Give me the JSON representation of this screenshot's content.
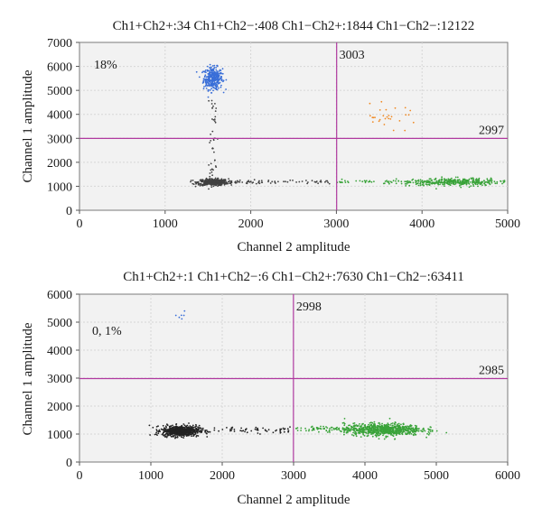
{
  "chart_data": [
    {
      "type": "scatter",
      "title": "Ch1+Ch2+:34 Ch1+Ch2−:408 Ch1−Ch2+:1844 Ch1−Ch2−:12122",
      "xlabel": "Channel 2 amplitude",
      "ylabel": "Channel 1 amplitude",
      "xlim": [
        0,
        5000
      ],
      "ylim": [
        0,
        7000
      ],
      "xticks": [
        0,
        1000,
        2000,
        3000,
        4000,
        5000
      ],
      "yticks": [
        0,
        1000,
        2000,
        3000,
        4000,
        5000,
        6000,
        7000
      ],
      "grid": true,
      "threshold_x": {
        "value": 3003,
        "label": "3003"
      },
      "threshold_y": {
        "value": 2997,
        "label": "2997"
      },
      "annotation": "18%",
      "series": [
        {
          "color": "#3a6fd8",
          "clusters": [
            {
              "cx": 1560,
              "cy": 5500,
              "sx": 55,
              "sy": 230,
              "n": 340
            }
          ]
        },
        {
          "color": "#404040",
          "clusters": [
            {
              "cx": 1560,
              "cy": 1170,
              "sx": 90,
              "sy": 70,
              "n": 420
            },
            {
              "x_range": [
                1600,
                2950
              ],
              "y": 1180,
              "ys": 40,
              "n": 70
            },
            {
              "cx": 1560,
              "y_range": [
                1450,
                4700
              ],
              "xs": 25,
              "n": 40
            }
          ]
        },
        {
          "color": "#3aa33a",
          "clusters": [
            {
              "cx": 4380,
              "cy": 1180,
              "sx": 260,
              "sy": 75,
              "n": 360
            },
            {
              "x_range": [
                3000,
                4100
              ],
              "y": 1190,
              "ys": 40,
              "n": 50
            }
          ]
        },
        {
          "color": "#f08a24",
          "clusters": [
            {
              "cx": 3600,
              "cy": 3900,
              "sx": 180,
              "sy": 230,
              "n": 28
            }
          ]
        }
      ]
    },
    {
      "type": "scatter",
      "title": "Ch1+Ch2+:1 Ch1+Ch2−:6 Ch1−Ch2+:7630 Ch1−Ch2−:63411",
      "xlabel": "Channel 2 amplitude",
      "ylabel": "Channel 1 amplitude",
      "xlim": [
        0,
        6000
      ],
      "ylim": [
        0,
        6000
      ],
      "xticks": [
        0,
        1000,
        2000,
        3000,
        4000,
        5000,
        6000
      ],
      "yticks": [
        0,
        1000,
        2000,
        3000,
        4000,
        5000,
        6000
      ],
      "grid": true,
      "threshold_x": {
        "value": 2998,
        "label": "2998"
      },
      "threshold_y": {
        "value": 2985,
        "label": "2985"
      },
      "annotation": "0, 1%",
      "series": [
        {
          "color": "#3a6fd8",
          "clusters": [
            {
              "cx": 1450,
              "cy": 5250,
              "sx": 40,
              "sy": 120,
              "n": 6
            }
          ]
        },
        {
          "color": "#222222",
          "clusters": [
            {
              "cx": 1420,
              "cy": 1110,
              "sx": 130,
              "sy": 95,
              "n": 700
            },
            {
              "x_range": [
                1700,
                2950
              ],
              "y": 1150,
              "ys": 50,
              "n": 60
            }
          ]
        },
        {
          "color": "#3aa33a",
          "clusters": [
            {
              "cx": 4250,
              "cy": 1160,
              "sx": 270,
              "sy": 110,
              "n": 750
            },
            {
              "x_range": [
                3000,
                3800
              ],
              "y": 1180,
              "ys": 45,
              "n": 60
            }
          ]
        }
      ]
    }
  ]
}
